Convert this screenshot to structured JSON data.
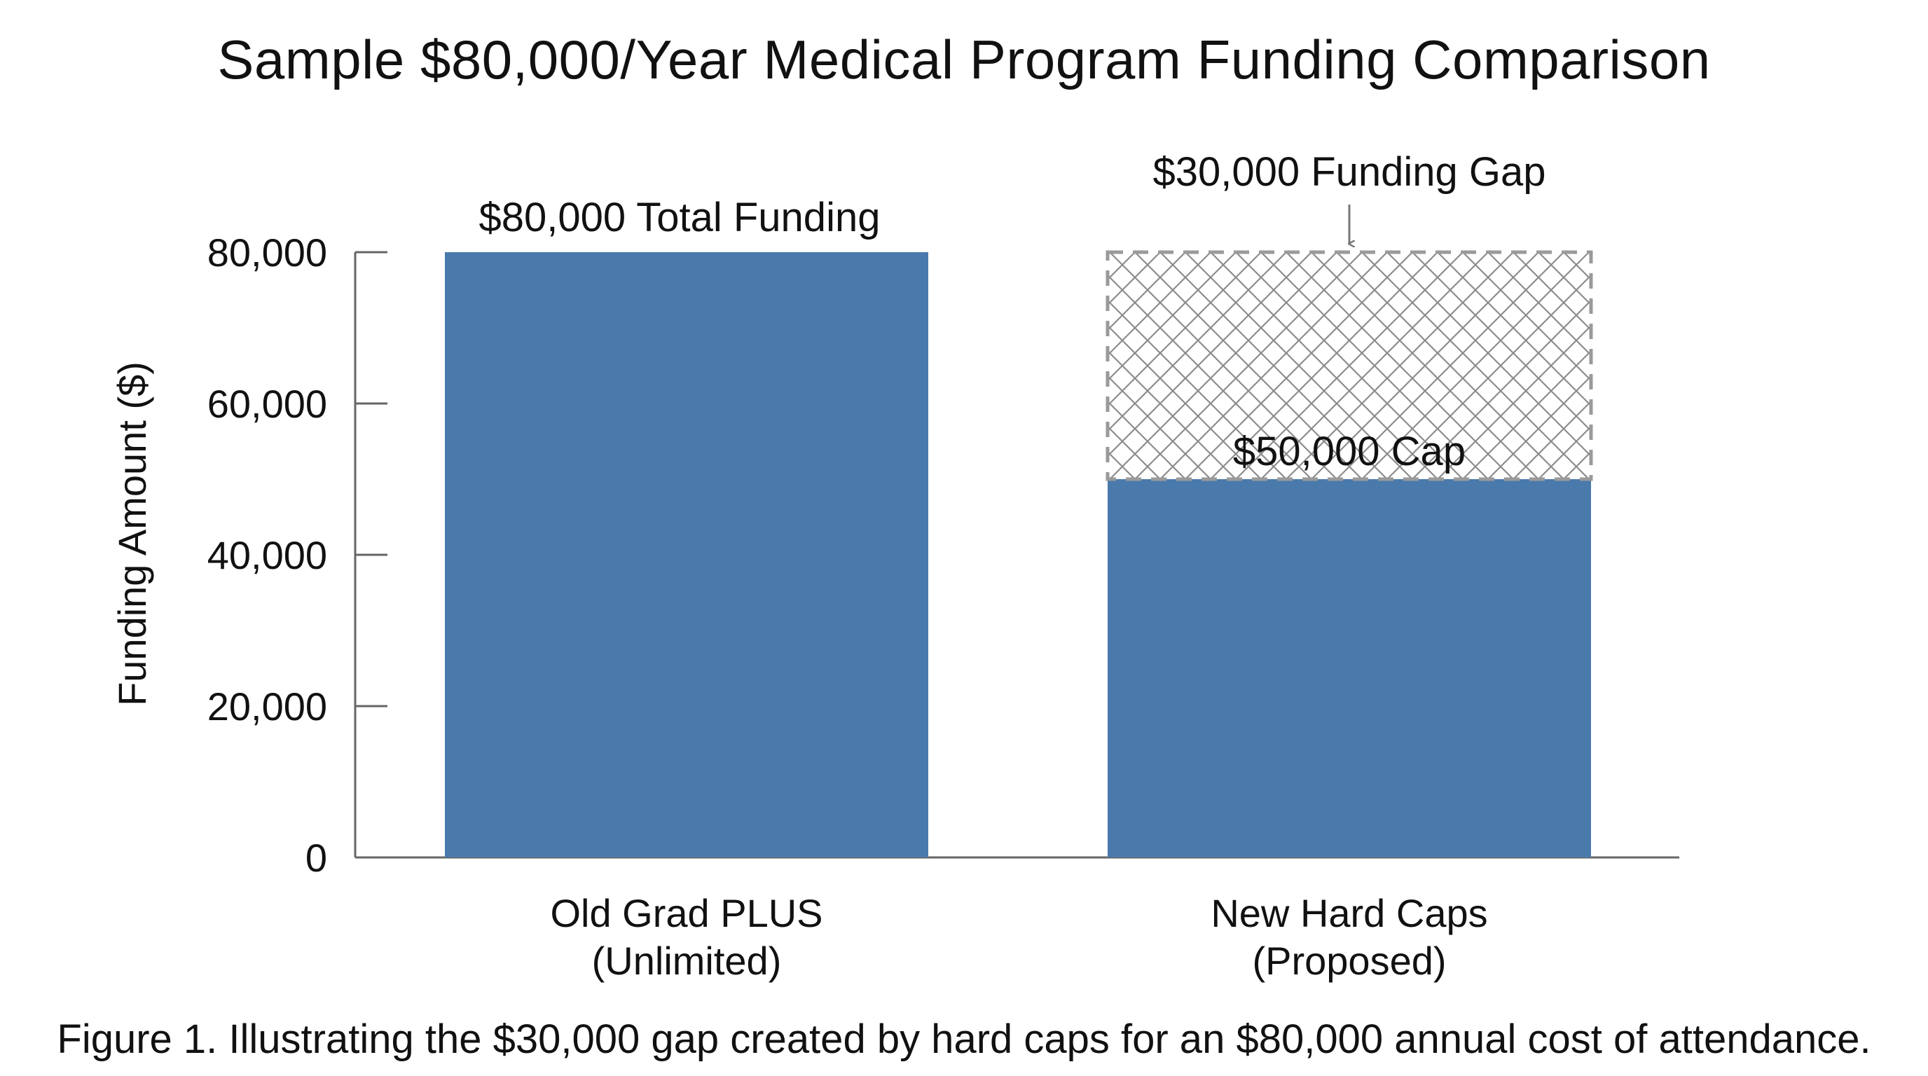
{
  "chart_data": {
    "type": "bar",
    "title": "Sample $80,000/Year Medical Program Funding Comparison",
    "ylabel": "Funding Amount ($)",
    "xlabel": "",
    "ylim": [
      0,
      80000
    ],
    "yticks": [
      0,
      20000,
      40000,
      60000,
      80000
    ],
    "ytick_labels": [
      "0",
      "20,000",
      "40,000",
      "60,000",
      "80,000"
    ],
    "categories": [
      [
        "Old Grad PLUS",
        "(Unlimited)"
      ],
      [
        "New Hard Caps",
        "(Proposed)"
      ]
    ],
    "series": [
      {
        "values": [
          80000,
          50000
        ],
        "color": "#4a7aac"
      },
      {
        "values": [
          0,
          30000
        ],
        "color": "#9a9a9a",
        "style": "hatched-dashed"
      }
    ],
    "data_labels": [
      "$80,000 Total Funding",
      "$50,000 Cap"
    ],
    "annotation": "$30,000 Funding Gap",
    "grid": false,
    "legend": "none"
  },
  "caption": "Figure 1. Illustrating the $30,000 gap created by hard caps for an $80,000 annual cost of attendance."
}
